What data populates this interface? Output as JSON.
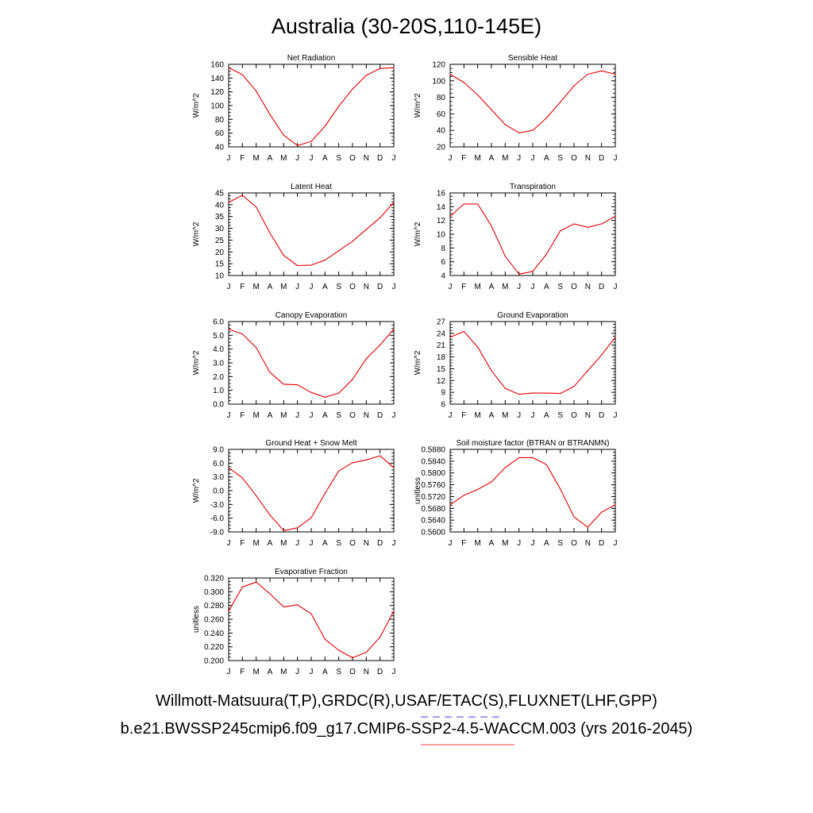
{
  "figure": {
    "title": "Australia (30-20S,110-145E)",
    "footer_line_1": "Willmott-Matsuura(T,P),GRDC(R),USAF/ETAC(S),FLUXNET(LHF,GPP)",
    "footer_line_2": "b.e21.BWSSP245cmip6.f09_g17.CMIP6-SSP2-4.5-WACCM.003 (yrs 2016-2045)",
    "line_color": "#e00000",
    "legend_dash_color": "#6666ff",
    "legend_solid_color": "#ff6666"
  },
  "chart_data": [
    {
      "type": "line",
      "title": "Net Radiation",
      "ylabel": "W/m^2",
      "x": [
        "J",
        "F",
        "M",
        "A",
        "M",
        "J",
        "J",
        "A",
        "S",
        "O",
        "N",
        "D",
        "J"
      ],
      "yticks": [
        "40",
        "60",
        "80",
        "100",
        "120",
        "140",
        "160"
      ],
      "ylim": [
        40,
        160
      ],
      "values": [
        155,
        145,
        121,
        87,
        57,
        42,
        48,
        70,
        99,
        124,
        144,
        154,
        155
      ]
    },
    {
      "type": "line",
      "title": "Sensible Heat",
      "ylabel": "W/m^2",
      "x": [
        "J",
        "F",
        "M",
        "A",
        "M",
        "J",
        "J",
        "A",
        "S",
        "O",
        "N",
        "D",
        "J"
      ],
      "yticks": [
        "20",
        "40",
        "60",
        "80",
        "100",
        "120"
      ],
      "ylim": [
        20,
        120
      ],
      "values": [
        108,
        98,
        83,
        65,
        47,
        37,
        40,
        55,
        74,
        94,
        108,
        112,
        108
      ]
    },
    {
      "type": "line",
      "title": "Latent Heat",
      "ylabel": "W/m^2",
      "x": [
        "J",
        "F",
        "M",
        "A",
        "M",
        "J",
        "J",
        "A",
        "S",
        "O",
        "N",
        "D",
        "J"
      ],
      "yticks": [
        "10",
        "15",
        "20",
        "25",
        "30",
        "35",
        "40",
        "45"
      ],
      "ylim": [
        10,
        45
      ],
      "values": [
        41,
        44,
        39,
        28,
        18.5,
        14.2,
        14.4,
        16.5,
        20.5,
        24.5,
        29.5,
        34.5,
        41
      ]
    },
    {
      "type": "line",
      "title": "Transpiration",
      "ylabel": "W/m^2",
      "x": [
        "J",
        "F",
        "M",
        "A",
        "M",
        "J",
        "J",
        "A",
        "S",
        "O",
        "N",
        "D",
        "J"
      ],
      "yticks": [
        "4",
        "6",
        "8",
        "10",
        "12",
        "14",
        "16"
      ],
      "ylim": [
        4,
        16
      ],
      "values": [
        12.6,
        14.4,
        14.4,
        11.2,
        6.8,
        4.2,
        4.6,
        7.1,
        10.5,
        11.5,
        11,
        11.5,
        12.6
      ]
    },
    {
      "type": "line",
      "title": "Canopy Evaporation",
      "ylabel": "W/m^2",
      "x": [
        "J",
        "F",
        "M",
        "A",
        "M",
        "J",
        "J",
        "A",
        "S",
        "O",
        "N",
        "D",
        "J"
      ],
      "yticks": [
        "0.0",
        "1.0",
        "2.0",
        "3.0",
        "4.0",
        "5.0",
        "6.0"
      ],
      "ylim": [
        0,
        6
      ],
      "values": [
        5.45,
        5.1,
        4.1,
        2.3,
        1.45,
        1.4,
        0.85,
        0.5,
        0.8,
        1.8,
        3.3,
        4.3,
        5.45
      ]
    },
    {
      "type": "line",
      "title": "Ground Evaporation",
      "ylabel": "W/m^2",
      "x": [
        "J",
        "F",
        "M",
        "A",
        "M",
        "J",
        "J",
        "A",
        "S",
        "O",
        "N",
        "D",
        "J"
      ],
      "yticks": [
        "6",
        "9",
        "12",
        "15",
        "18",
        "21",
        "24",
        "27"
      ],
      "ylim": [
        6,
        27
      ],
      "values": [
        23,
        24.5,
        20.5,
        14.5,
        10,
        8.5,
        8.8,
        8.8,
        8.7,
        10.5,
        14.5,
        18.5,
        23
      ]
    },
    {
      "type": "line",
      "title": "Ground Heat + Snow Melt",
      "ylabel": "W/m^2",
      "x": [
        "J",
        "F",
        "M",
        "A",
        "M",
        "J",
        "J",
        "A",
        "S",
        "O",
        "N",
        "D",
        "J"
      ],
      "yticks": [
        "-9.0",
        "-6.0",
        "-3.0",
        "0.0",
        "3.0",
        "6.0",
        "9.0"
      ],
      "ylim": [
        -9,
        9
      ],
      "values": [
        5,
        2.8,
        -1.1,
        -5.3,
        -8.7,
        -8.1,
        -5.9,
        -0.6,
        4.3,
        6.1,
        6.7,
        7.6,
        5
      ]
    },
    {
      "type": "line",
      "title": "Soil moisture factor (BTRAN or BTRANMN)",
      "ylabel": "unitless",
      "x": [
        "J",
        "F",
        "M",
        "A",
        "M",
        "J",
        "J",
        "A",
        "S",
        "O",
        "N",
        "D",
        "J"
      ],
      "yticks": [
        "0.5600",
        "0.5640",
        "0.5680",
        "0.5720",
        "0.5760",
        "0.5800",
        "0.5840",
        "0.5880"
      ],
      "ylim": [
        0.56,
        0.588
      ],
      "values": [
        0.5692,
        0.5724,
        0.5744,
        0.577,
        0.5818,
        0.5852,
        0.5852,
        0.5828,
        0.5746,
        0.5651,
        0.5616,
        0.5667,
        0.5692
      ]
    },
    {
      "type": "line",
      "title": "Evaporative Fraction",
      "ylabel": "unitless",
      "x": [
        "J",
        "F",
        "M",
        "A",
        "M",
        "J",
        "J",
        "A",
        "S",
        "O",
        "N",
        "D",
        "J"
      ],
      "yticks": [
        "0.200",
        "0.220",
        "0.240",
        "0.260",
        "0.280",
        "0.300",
        "0.320"
      ],
      "ylim": [
        0.2,
        0.32
      ],
      "values": [
        0.272,
        0.307,
        0.314,
        0.297,
        0.278,
        0.281,
        0.268,
        0.231,
        0.215,
        0.204,
        0.212,
        0.234,
        0.272
      ]
    }
  ]
}
